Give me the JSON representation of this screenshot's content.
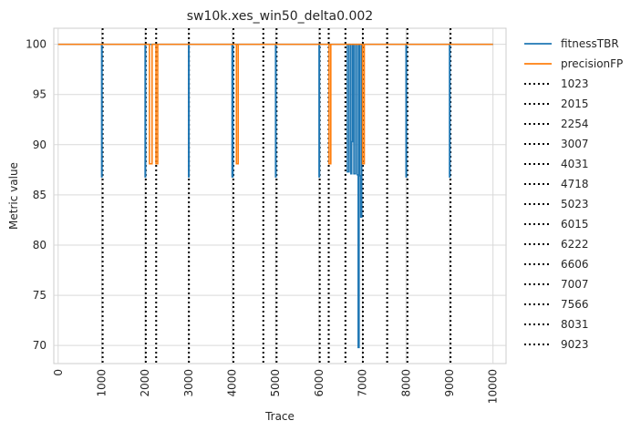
{
  "chart_data": {
    "type": "line",
    "title": "sw10k.xes_win50_delta0.002",
    "xlabel": "Trace",
    "ylabel": "Metric value",
    "xlim": [
      -100,
      10300
    ],
    "ylim": [
      68.2,
      101.6
    ],
    "xticks": [
      0,
      1000,
      2000,
      3000,
      4000,
      5000,
      6000,
      7000,
      8000,
      9000,
      10000
    ],
    "yticks": [
      70,
      75,
      80,
      85,
      90,
      95,
      100
    ],
    "grid": true,
    "legend_position": "outside-right",
    "series": [
      {
        "name": "fitnessTBR",
        "color": "#1f77b4",
        "points": [
          [
            0,
            100
          ],
          [
            1000,
            100
          ],
          [
            1000,
            86.8
          ],
          [
            1010,
            86.8
          ],
          [
            1010,
            100
          ],
          [
            2000,
            100
          ],
          [
            2000,
            86.8
          ],
          [
            2010,
            86.8
          ],
          [
            2010,
            100
          ],
          [
            3000,
            100
          ],
          [
            3000,
            86.8
          ],
          [
            3010,
            86.8
          ],
          [
            3010,
            100
          ],
          [
            4000,
            100
          ],
          [
            4000,
            86.8
          ],
          [
            4020,
            86.8
          ],
          [
            4020,
            100
          ],
          [
            5000,
            100
          ],
          [
            5000,
            86.8
          ],
          [
            5010,
            86.8
          ],
          [
            5010,
            100
          ],
          [
            6000,
            100
          ],
          [
            6000,
            86.8
          ],
          [
            6010,
            86.8
          ],
          [
            6010,
            100
          ],
          [
            6650,
            100
          ],
          [
            6650,
            87.3
          ],
          [
            6690,
            87.3
          ],
          [
            6690,
            100
          ],
          [
            6730,
            100
          ],
          [
            6730,
            87.1
          ],
          [
            6750,
            87.1
          ],
          [
            6750,
            90.3
          ],
          [
            6770,
            90.3
          ],
          [
            6770,
            100
          ],
          [
            6800,
            100
          ],
          [
            6800,
            87.1
          ],
          [
            6840,
            87.1
          ],
          [
            6840,
            100
          ],
          [
            6880,
            100
          ],
          [
            6880,
            87.0
          ],
          [
            6900,
            87.0
          ],
          [
            6900,
            69.8
          ],
          [
            6920,
            69.8
          ],
          [
            6920,
            100
          ],
          [
            6940,
            100
          ],
          [
            6940,
            86.9
          ],
          [
            6960,
            86.9
          ],
          [
            6960,
            82.8
          ],
          [
            6980,
            82.8
          ],
          [
            6980,
            100
          ],
          [
            8000,
            100
          ],
          [
            8000,
            86.8
          ],
          [
            8010,
            86.8
          ],
          [
            8010,
            100
          ],
          [
            9000,
            100
          ],
          [
            9000,
            86.8
          ],
          [
            9010,
            86.8
          ],
          [
            9010,
            100
          ],
          [
            10000,
            100
          ]
        ]
      },
      {
        "name": "precisionFP",
        "color": "#ff7f0e",
        "points": [
          [
            0,
            100
          ],
          [
            2100,
            100
          ],
          [
            2100,
            88.1
          ],
          [
            2160,
            88.1
          ],
          [
            2160,
            100
          ],
          [
            2250,
            100
          ],
          [
            2250,
            88.1
          ],
          [
            2290,
            88.1
          ],
          [
            2290,
            100
          ],
          [
            4100,
            100
          ],
          [
            4100,
            88.1
          ],
          [
            4140,
            88.1
          ],
          [
            4140,
            100
          ],
          [
            6230,
            100
          ],
          [
            6230,
            88.1
          ],
          [
            6270,
            88.1
          ],
          [
            6270,
            100
          ],
          [
            7000,
            100
          ],
          [
            7000,
            88.1
          ],
          [
            7040,
            88.1
          ],
          [
            7040,
            100
          ],
          [
            10000,
            100
          ]
        ]
      }
    ],
    "vlines": [
      1023,
      2015,
      2254,
      3007,
      4031,
      4718,
      5023,
      6015,
      6222,
      6606,
      7007,
      7566,
      8031,
      9023
    ]
  }
}
